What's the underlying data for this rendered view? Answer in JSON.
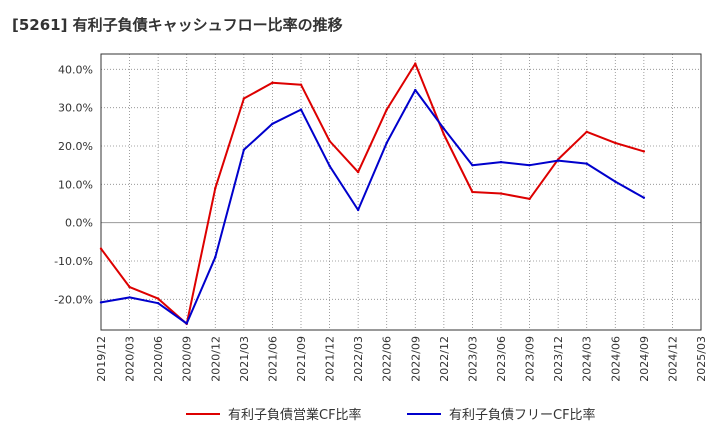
{
  "chart_data": {
    "type": "line",
    "title": "[5261]  有利子負債キャッシュフロー比率の推移",
    "xlabel": "",
    "ylabel": "",
    "x": [
      "2019/12",
      "2020/03",
      "2020/06",
      "2020/09",
      "2020/12",
      "2021/03",
      "2021/06",
      "2021/09",
      "2021/12",
      "2022/03",
      "2022/06",
      "2022/09",
      "2022/12",
      "2023/03",
      "2023/06",
      "2023/09",
      "2023/12",
      "2024/03",
      "2024/06",
      "2024/09",
      "2024/12",
      "2025/03"
    ],
    "ylim": [
      -28,
      44
    ],
    "yticks": [
      -20,
      -10,
      0,
      10,
      20,
      30,
      40
    ],
    "ytick_labels": [
      "-20.0%",
      "-10.0%",
      "0.0%",
      "10.0%",
      "20.0%",
      "30.0%",
      "40.0%"
    ],
    "grid": true,
    "legend_position": "bottom",
    "series": [
      {
        "name": "有利子負債営業CF比率",
        "color": "#dd0000",
        "values": [
          -6.8,
          -16.8,
          -19.8,
          -26.4,
          9.0,
          32.4,
          36.5,
          36.0,
          21.3,
          13.2,
          29.5,
          41.5,
          23.0,
          8.0,
          7.6,
          6.2,
          16.5,
          23.7,
          20.8,
          18.6,
          null,
          null
        ]
      },
      {
        "name": "有利子負債フリーCF比率",
        "color": "#0000cc",
        "values": [
          -20.8,
          -19.5,
          -21.0,
          -26.3,
          -9.0,
          19.0,
          25.8,
          29.5,
          14.8,
          3.3,
          20.8,
          34.6,
          24.5,
          15.0,
          15.8,
          15.0,
          16.2,
          15.4,
          10.7,
          6.5,
          null,
          null
        ]
      }
    ]
  }
}
